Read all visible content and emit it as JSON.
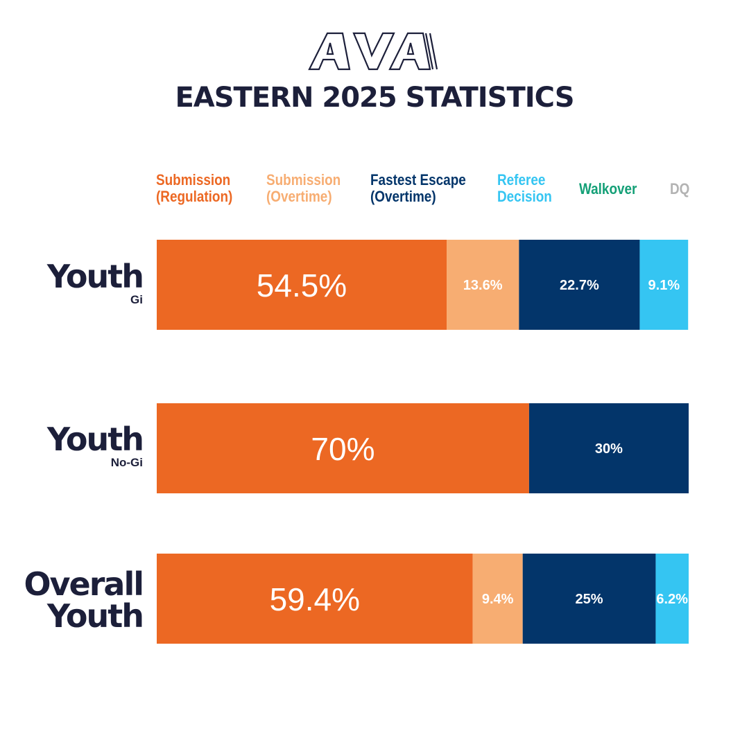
{
  "logo": {
    "text": "AVA"
  },
  "title": "EASTERN 2025 STATISTICS",
  "legend": [
    {
      "line1": "Submission",
      "line2": "(Regulation)",
      "color": "#ec6823"
    },
    {
      "line1": "Submission",
      "line2": "(Overtime)",
      "color": "#f7ad72"
    },
    {
      "line1": "Fastest Escape",
      "line2": "(Overtime)",
      "color": "#03356a"
    },
    {
      "line1": "Referee",
      "line2": "Decision",
      "color": "#35c5f2"
    },
    {
      "line1": "Walkover",
      "line2": "",
      "color": "#14a077"
    },
    {
      "line1": "DQ",
      "line2": "",
      "color": "#b3b3b3"
    }
  ],
  "rows": [
    {
      "label": "Youth",
      "sublabel": "Gi"
    },
    {
      "label": "Youth",
      "sublabel": "No-Gi"
    },
    {
      "label": "Overall Youth",
      "sublabel": ""
    }
  ],
  "chart_data": {
    "type": "bar",
    "orientation": "horizontal",
    "stacked": true,
    "percent": true,
    "categories": [
      "Youth Gi",
      "Youth No-Gi",
      "Overall Youth"
    ],
    "series": [
      {
        "name": "Submission (Regulation)",
        "color": "#ec6823",
        "values": [
          54.5,
          70,
          59.4
        ],
        "labels": [
          "54.5%",
          "70%",
          "59.4%"
        ]
      },
      {
        "name": "Submission (Overtime)",
        "color": "#f7ad72",
        "values": [
          13.6,
          0,
          9.4
        ],
        "labels": [
          "13.6%",
          "",
          "9.4%"
        ]
      },
      {
        "name": "Fastest Escape (Overtime)",
        "color": "#03356a",
        "values": [
          22.7,
          30,
          25
        ],
        "labels": [
          "22.7%",
          "30%",
          "25%"
        ]
      },
      {
        "name": "Referee Decision",
        "color": "#35c5f2",
        "values": [
          9.1,
          0,
          6.2
        ],
        "labels": [
          "9.1%",
          "",
          "6.2%"
        ]
      },
      {
        "name": "Walkover",
        "color": "#14a077",
        "values": [
          0,
          0,
          0
        ],
        "labels": [
          "",
          "",
          ""
        ]
      },
      {
        "name": "DQ",
        "color": "#b3b3b3",
        "values": [
          0,
          0,
          0
        ],
        "labels": [
          "",
          "",
          ""
        ]
      }
    ],
    "xlim": [
      0,
      100
    ],
    "grid": false,
    "legend": "top"
  }
}
